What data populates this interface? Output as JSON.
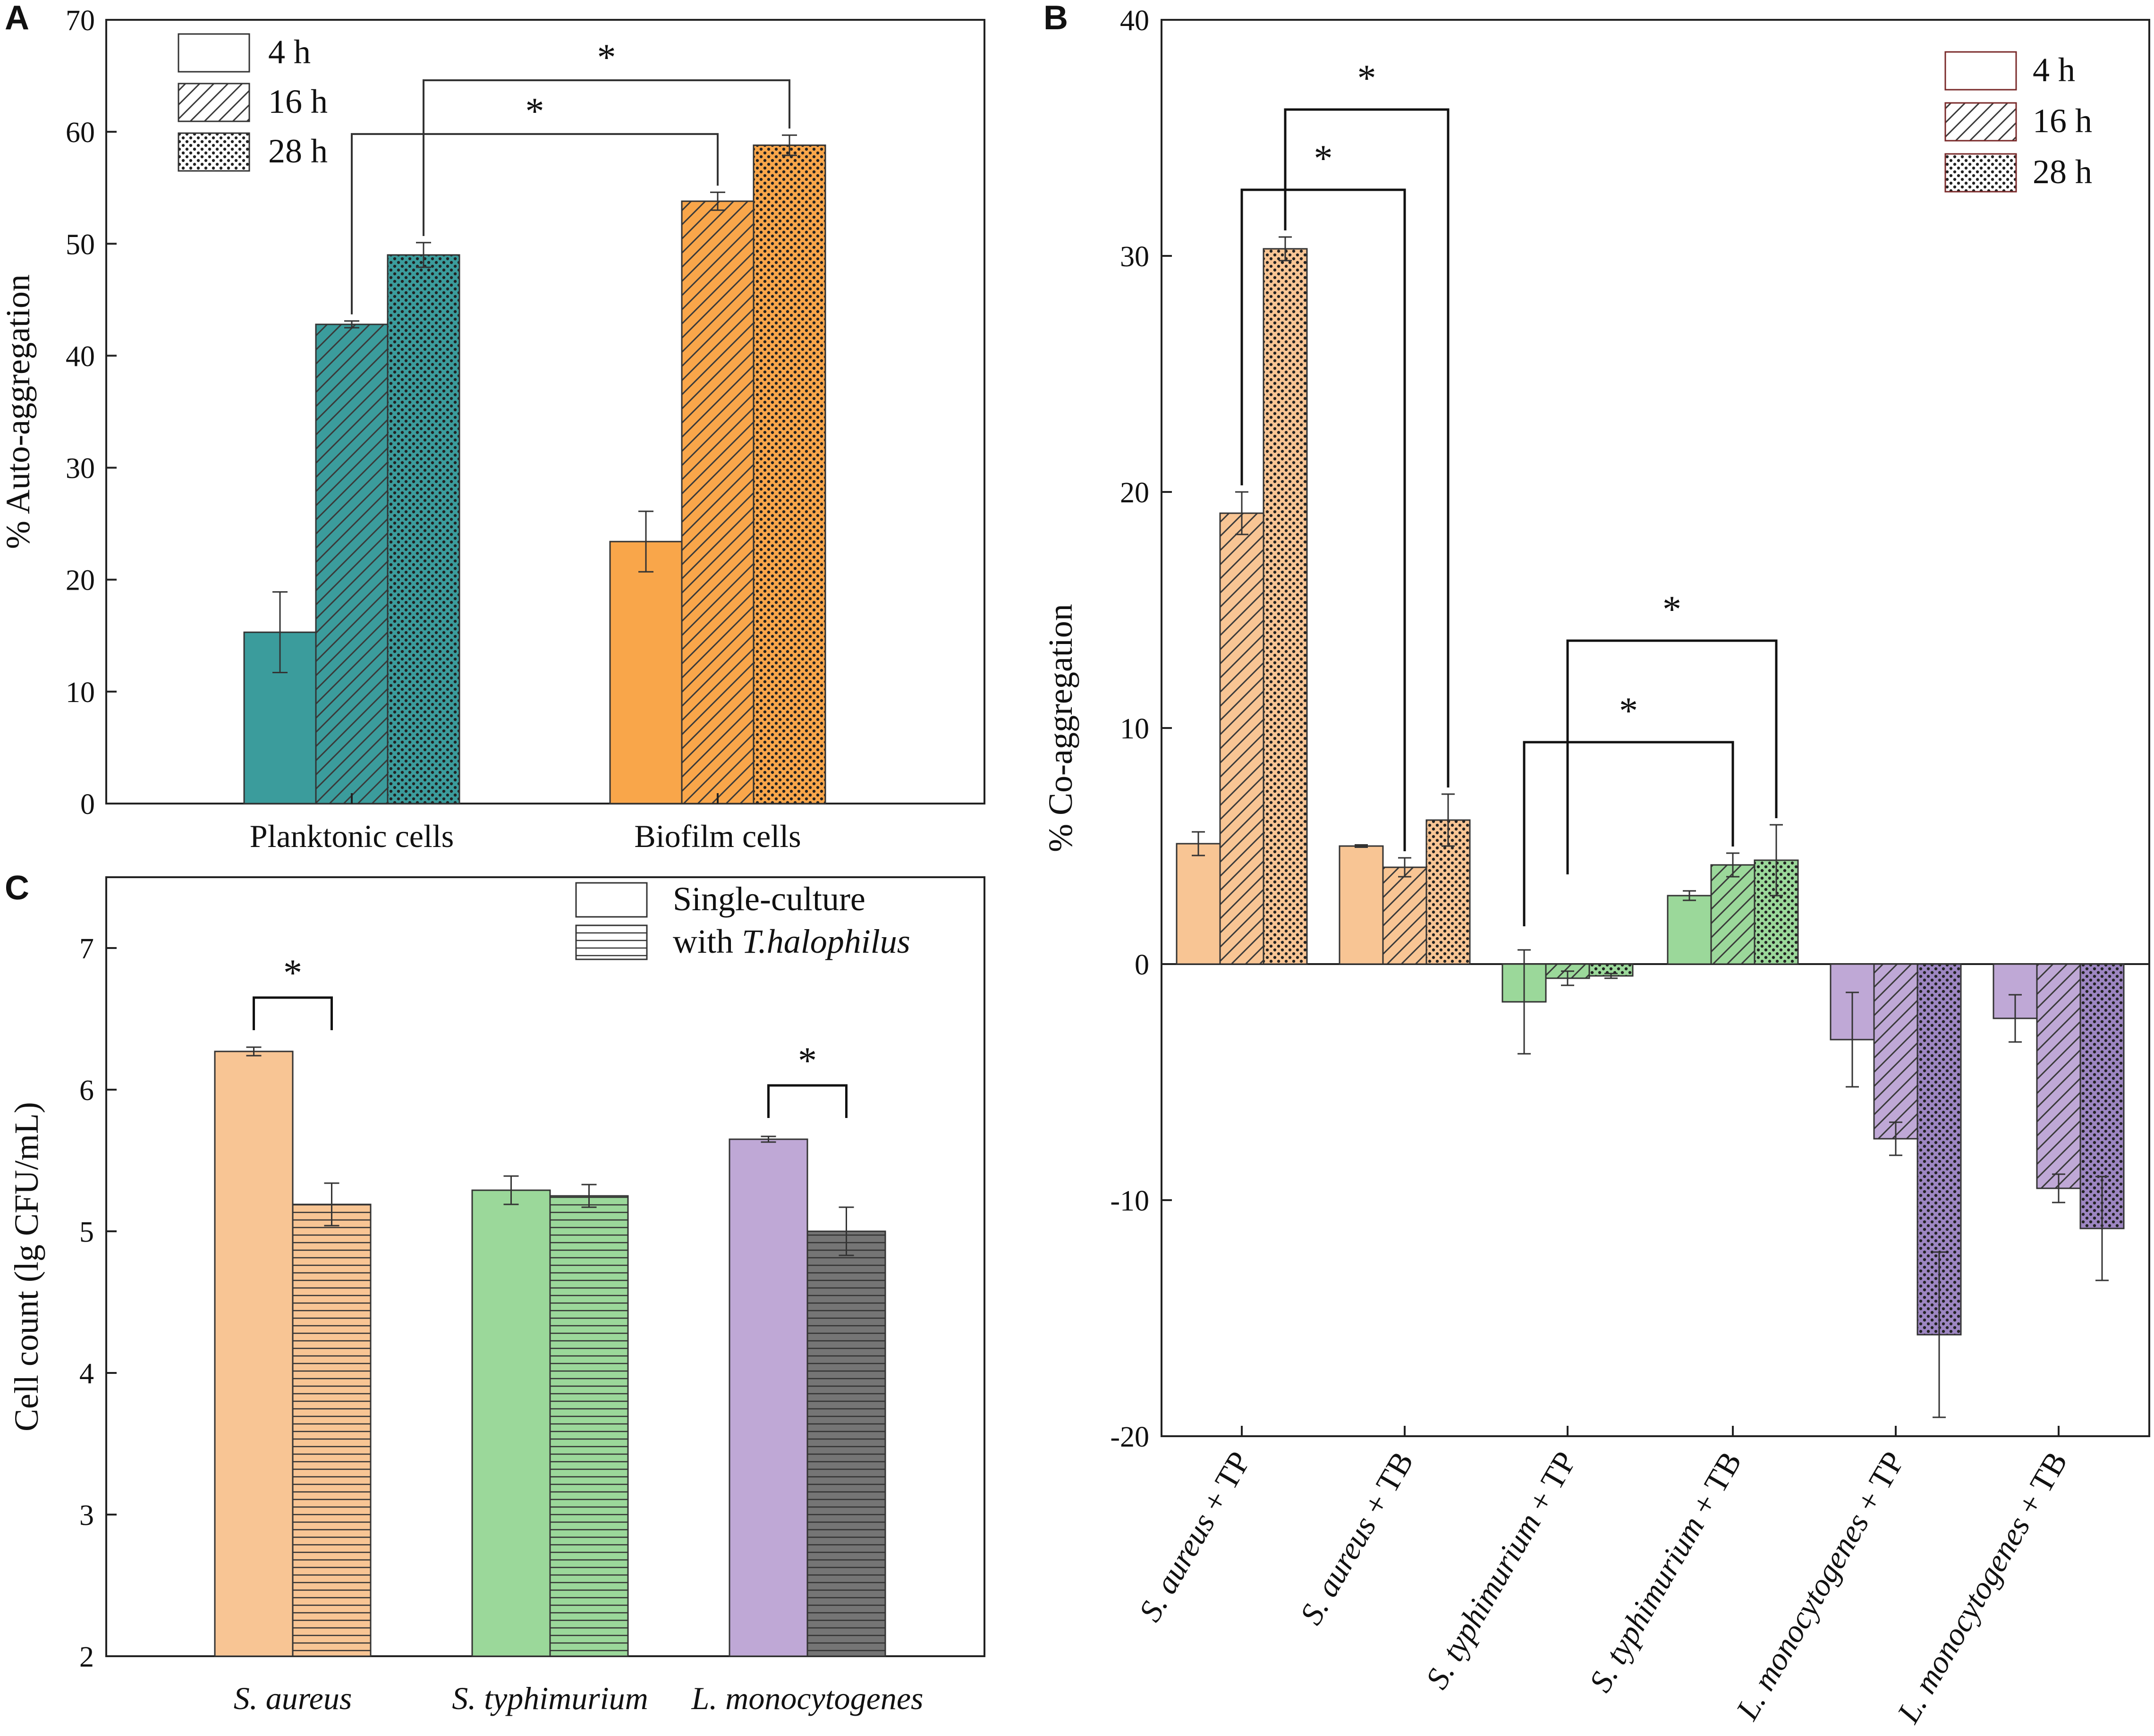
{
  "figure_title": "",
  "colors": {
    "teal": "#3b9c9c",
    "orange": "#f9a64a",
    "peach": "#f8c594",
    "green": "#9bd89a",
    "purple": "#bfa8d6",
    "purple_dark": "#9d86c2",
    "grey": "#757575",
    "peach_a": "#f8c594"
  },
  "legend_icons": [
    "open-box",
    "diagonal-hatch-box",
    "dotted-box"
  ],
  "chart_data": [
    {
      "panel": "A",
      "type": "bar",
      "title": "",
      "xlabel": "",
      "ylabel": "% Auto-aggregation",
      "ylim": [
        0,
        70
      ],
      "yticks": [
        "0",
        "10",
        "20",
        "30",
        "40",
        "50",
        "60",
        "70"
      ],
      "categories": [
        "Planktonic cells",
        "Biofilm cells"
      ],
      "legend": {
        "position": "top-left",
        "entries": [
          "4 h",
          "16 h",
          "28 h"
        ]
      },
      "series": [
        {
          "name": "4 h",
          "pattern": "solid",
          "values": [
            15.3,
            23.4
          ],
          "errors": [
            3.6,
            2.7
          ]
        },
        {
          "name": "16 h",
          "pattern": "diagonal",
          "values": [
            42.8,
            53.8
          ],
          "errors": [
            0.3,
            0.8
          ]
        },
        {
          "name": "28 h",
          "pattern": "dotted",
          "values": [
            49.0,
            58.8
          ],
          "errors": [
            1.1,
            0.9
          ]
        }
      ],
      "group_colors": [
        "#3b9c9c",
        "#f9a64a"
      ],
      "significance": [
        {
          "label": "*",
          "from": [
            0,
            1
          ],
          "to": [
            1,
            1
          ]
        },
        {
          "label": "*",
          "from": [
            0,
            2
          ],
          "to": [
            1,
            2
          ]
        }
      ]
    },
    {
      "panel": "B",
      "type": "bar",
      "title": "",
      "xlabel": "",
      "ylabel": "% Co-aggregation",
      "ylim": [
        -20,
        40
      ],
      "yticks": [
        "-20",
        "-10",
        "0",
        "10",
        "20",
        "30",
        "40"
      ],
      "categories": [
        {
          "species": "S. aureus",
          "suffix": " + TP"
        },
        {
          "species": "S. aureus",
          "suffix": " + TB"
        },
        {
          "species": "S. typhimurium",
          "suffix": " + TP"
        },
        {
          "species": "S. typhimurium",
          "suffix": " + TB"
        },
        {
          "species": "L. monocytogenes",
          "suffix": " + TP"
        },
        {
          "species": "L. monocytogenes",
          "suffix": " + TB"
        }
      ],
      "legend": {
        "position": "top-right",
        "entries": [
          "4 h",
          "16 h",
          "28 h"
        ]
      },
      "series": [
        {
          "name": "4 h",
          "pattern": "solid",
          "values": [
            5.1,
            5.0,
            -1.6,
            2.9,
            -3.2,
            -2.3
          ],
          "errors": [
            0.5,
            0.05,
            2.2,
            0.2,
            2.0,
            1.0
          ]
        },
        {
          "name": "16 h",
          "pattern": "diagonal",
          "values": [
            19.1,
            4.1,
            -0.6,
            4.2,
            -7.4,
            -9.5
          ],
          "errors": [
            0.9,
            0.4,
            0.3,
            0.5,
            0.7,
            0.6
          ]
        },
        {
          "name": "28 h",
          "pattern": "dotted",
          "values": [
            30.3,
            6.1,
            -0.5,
            4.4,
            -15.7,
            -11.2
          ],
          "errors": [
            0.5,
            1.1,
            0.1,
            1.5,
            3.5,
            2.2
          ]
        }
      ],
      "group_colors": [
        "#f8c594",
        "#f8c594",
        "#9bd89a",
        "#9bd89a",
        "#bfa8d6",
        "#bfa8d6"
      ],
      "significance": [
        {
          "label": "*",
          "from": [
            0,
            1
          ],
          "to": [
            1,
            1
          ]
        },
        {
          "label": "*",
          "from": [
            0,
            2
          ],
          "to": [
            1,
            2
          ]
        },
        {
          "label": "*",
          "from": [
            2,
            0
          ],
          "to": [
            3,
            1
          ]
        },
        {
          "label": "*",
          "from": [
            2,
            1
          ],
          "to": [
            3,
            2
          ]
        }
      ]
    },
    {
      "panel": "C",
      "type": "bar",
      "title": "",
      "xlabel": "",
      "ylabel": "Cell count (lg CFU/mL)",
      "ylim": [
        2,
        7.5
      ],
      "yticks": [
        "2",
        "3",
        "4",
        "5",
        "6",
        "7"
      ],
      "categories": [
        "S. aureus",
        "S. typhimurium",
        "L. monocytogenes"
      ],
      "legend": {
        "position": "top-right",
        "entries": [
          {
            "text": "Single-culture"
          },
          {
            "prefix": "with ",
            "italic": "T.halophilus"
          }
        ]
      },
      "series": [
        {
          "name": "Single-culture",
          "pattern": "solid",
          "values": [
            6.27,
            5.29,
            5.65
          ],
          "errors": [
            0.03,
            0.1,
            0.02
          ]
        },
        {
          "name": "with T.halophilus",
          "pattern": "horizontal",
          "values": [
            5.19,
            5.25,
            5.0
          ],
          "errors": [
            0.15,
            0.08,
            0.17
          ]
        }
      ],
      "group_colors": [
        "#f8c594",
        "#9bd89a",
        "#bfa8d6"
      ],
      "special_colors": {
        "L. monocytogenes|with T.halophilus": "#757575"
      },
      "significance": [
        {
          "label": "*",
          "group": 0
        },
        {
          "label": "*",
          "group": 2
        }
      ]
    }
  ],
  "panel_labels": [
    "A",
    "B",
    "C"
  ]
}
